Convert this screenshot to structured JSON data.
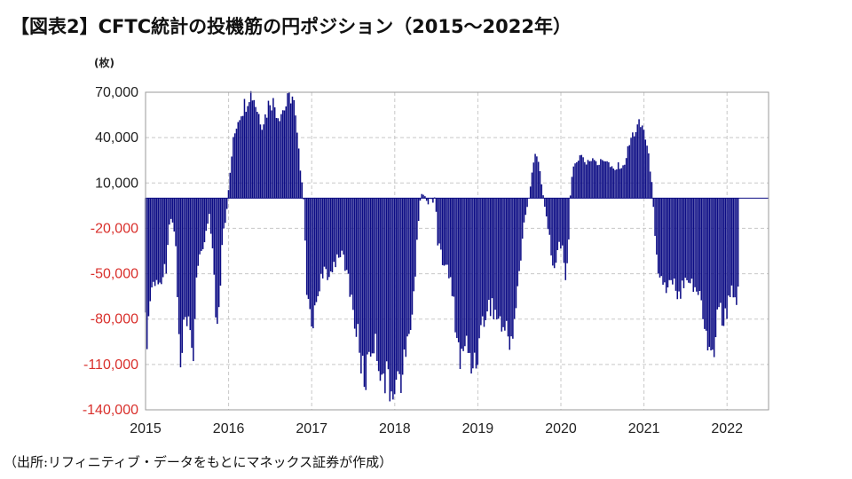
{
  "title": "【図表2】CFTC統計の投機筋の円ポジション（2015～2022年）",
  "unit_label": "(枚)",
  "source": "（出所:リフィニティブ・データをもとにマネックス証券が作成）",
  "colors": {
    "bar": "#0d0d85",
    "positive_tick": "#222222",
    "negative_tick": "#d9302c",
    "grid": "#c8c8c8"
  },
  "chart_data": {
    "type": "bar",
    "title": "",
    "xlabel": "",
    "ylabel": "(枚)",
    "ylim": [
      -140000,
      70000
    ],
    "xlim": [
      2015.0,
      2022.5
    ],
    "grid": true,
    "yticks": [
      70000,
      40000,
      10000,
      -20000,
      -50000,
      -80000,
      -110000,
      -140000
    ],
    "ytick_labels": [
      "70,000",
      "40,000",
      "10,000",
      "-20,000",
      "-50,000",
      "-80,000",
      "-110,000",
      "-140,000"
    ],
    "xticks": [
      2015,
      2016,
      2017,
      2018,
      2019,
      2020,
      2021,
      2022
    ],
    "xtick_labels": [
      "2015",
      "2016",
      "2017",
      "2018",
      "2019",
      "2020",
      "2021",
      "2022"
    ],
    "keypoints": [
      [
        2015.0,
        -85000
      ],
      [
        2015.03,
        -95000
      ],
      [
        2015.06,
        -65000
      ],
      [
        2015.1,
        -55000
      ],
      [
        2015.15,
        -60000
      ],
      [
        2015.2,
        -50000
      ],
      [
        2015.25,
        -45000
      ],
      [
        2015.28,
        -20000
      ],
      [
        2015.31,
        -12000
      ],
      [
        2015.36,
        -25000
      ],
      [
        2015.4,
        -85000
      ],
      [
        2015.43,
        -115000
      ],
      [
        2015.47,
        -80000
      ],
      [
        2015.52,
        -88000
      ],
      [
        2015.57,
        -105000
      ],
      [
        2015.62,
        -50000
      ],
      [
        2015.67,
        -35000
      ],
      [
        2015.72,
        -25000
      ],
      [
        2015.77,
        -10000
      ],
      [
        2015.81,
        -35000
      ],
      [
        2015.85,
        -80000
      ],
      [
        2015.89,
        -75000
      ],
      [
        2015.93,
        -25000
      ],
      [
        2015.97,
        -15000
      ],
      [
        2016.0,
        5000
      ],
      [
        2016.05,
        35000
      ],
      [
        2016.1,
        50000
      ],
      [
        2016.15,
        58000
      ],
      [
        2016.2,
        62000
      ],
      [
        2016.25,
        70000
      ],
      [
        2016.3,
        68000
      ],
      [
        2016.35,
        58000
      ],
      [
        2016.4,
        50000
      ],
      [
        2016.45,
        55000
      ],
      [
        2016.5,
        66000
      ],
      [
        2016.55,
        62000
      ],
      [
        2016.6,
        55000
      ],
      [
        2016.65,
        58000
      ],
      [
        2016.7,
        62000
      ],
      [
        2016.75,
        68000
      ],
      [
        2016.78,
        66000
      ],
      [
        2016.82,
        45000
      ],
      [
        2016.86,
        22000
      ],
      [
        2016.9,
        5000
      ],
      [
        2016.92,
        -25000
      ],
      [
        2016.95,
        -70000
      ],
      [
        2017.0,
        -85000
      ],
      [
        2017.05,
        -70000
      ],
      [
        2017.1,
        -55000
      ],
      [
        2017.15,
        -50000
      ],
      [
        2017.2,
        -55000
      ],
      [
        2017.25,
        -45000
      ],
      [
        2017.3,
        -40000
      ],
      [
        2017.35,
        -35000
      ],
      [
        2017.4,
        -45000
      ],
      [
        2017.45,
        -55000
      ],
      [
        2017.5,
        -75000
      ],
      [
        2017.55,
        -90000
      ],
      [
        2017.6,
        -110000
      ],
      [
        2017.65,
        -120000
      ],
      [
        2017.7,
        -100000
      ],
      [
        2017.75,
        -95000
      ],
      [
        2017.8,
        -105000
      ],
      [
        2017.85,
        -115000
      ],
      [
        2017.9,
        -120000
      ],
      [
        2017.95,
        -130000
      ],
      [
        2018.0,
        -118000
      ],
      [
        2018.05,
        -122000
      ],
      [
        2018.1,
        -115000
      ],
      [
        2018.15,
        -100000
      ],
      [
        2018.2,
        -80000
      ],
      [
        2018.25,
        -50000
      ],
      [
        2018.28,
        -20000
      ],
      [
        2018.31,
        0
      ],
      [
        2018.33,
        3000
      ],
      [
        2018.37,
        1000
      ],
      [
        2018.4,
        -5000
      ],
      [
        2018.43,
        1000
      ],
      [
        2018.46,
        -3000
      ],
      [
        2018.49,
        2000
      ],
      [
        2018.52,
        -30000
      ],
      [
        2018.57,
        -40000
      ],
      [
        2018.62,
        -45000
      ],
      [
        2018.67,
        -55000
      ],
      [
        2018.72,
        -75000
      ],
      [
        2018.77,
        -100000
      ],
      [
        2018.8,
        -110000
      ],
      [
        2018.85,
        -95000
      ],
      [
        2018.9,
        -105000
      ],
      [
        2018.95,
        -110000
      ],
      [
        2019.0,
        -100000
      ],
      [
        2019.05,
        -85000
      ],
      [
        2019.1,
        -75000
      ],
      [
        2019.15,
        -70000
      ],
      [
        2019.2,
        -75000
      ],
      [
        2019.25,
        -80000
      ],
      [
        2019.3,
        -85000
      ],
      [
        2019.35,
        -90000
      ],
      [
        2019.4,
        -95000
      ],
      [
        2019.44,
        -80000
      ],
      [
        2019.48,
        -60000
      ],
      [
        2019.52,
        -40000
      ],
      [
        2019.56,
        -15000
      ],
      [
        2019.6,
        -5000
      ],
      [
        2019.63,
        5000
      ],
      [
        2019.67,
        25000
      ],
      [
        2019.7,
        32000
      ],
      [
        2019.74,
        20000
      ],
      [
        2019.78,
        5000
      ],
      [
        2019.82,
        -10000
      ],
      [
        2019.86,
        -25000
      ],
      [
        2019.9,
        -40000
      ],
      [
        2019.94,
        -45000
      ],
      [
        2019.98,
        -30000
      ],
      [
        2020.02,
        -35000
      ],
      [
        2020.06,
        -50000
      ],
      [
        2020.1,
        -25000
      ],
      [
        2020.12,
        10000
      ],
      [
        2020.15,
        20000
      ],
      [
        2020.2,
        25000
      ],
      [
        2020.25,
        30000
      ],
      [
        2020.3,
        22000
      ],
      [
        2020.35,
        25000
      ],
      [
        2020.4,
        28000
      ],
      [
        2020.45,
        22000
      ],
      [
        2020.5,
        25000
      ],
      [
        2020.55,
        26000
      ],
      [
        2020.6,
        20000
      ],
      [
        2020.65,
        18000
      ],
      [
        2020.7,
        22000
      ],
      [
        2020.75,
        20000
      ],
      [
        2020.8,
        30000
      ],
      [
        2020.85,
        40000
      ],
      [
        2020.9,
        45000
      ],
      [
        2020.95,
        48000
      ],
      [
        2021.0,
        46000
      ],
      [
        2021.05,
        30000
      ],
      [
        2021.1,
        10000
      ],
      [
        2021.13,
        -20000
      ],
      [
        2021.17,
        -45000
      ],
      [
        2021.22,
        -55000
      ],
      [
        2021.27,
        -60000
      ],
      [
        2021.32,
        -50000
      ],
      [
        2021.37,
        -55000
      ],
      [
        2021.42,
        -65000
      ],
      [
        2021.47,
        -55000
      ],
      [
        2021.52,
        -50000
      ],
      [
        2021.57,
        -55000
      ],
      [
        2021.62,
        -60000
      ],
      [
        2021.67,
        -65000
      ],
      [
        2021.72,
        -80000
      ],
      [
        2021.77,
        -95000
      ],
      [
        2021.8,
        -105000
      ],
      [
        2021.84,
        -100000
      ],
      [
        2021.88,
        -80000
      ],
      [
        2021.92,
        -70000
      ],
      [
        2021.96,
        -85000
      ],
      [
        2022.0,
        -75000
      ],
      [
        2022.04,
        -65000
      ],
      [
        2022.08,
        -60000
      ],
      [
        2022.12,
        -65000
      ],
      [
        2022.15,
        -55000
      ]
    ]
  }
}
